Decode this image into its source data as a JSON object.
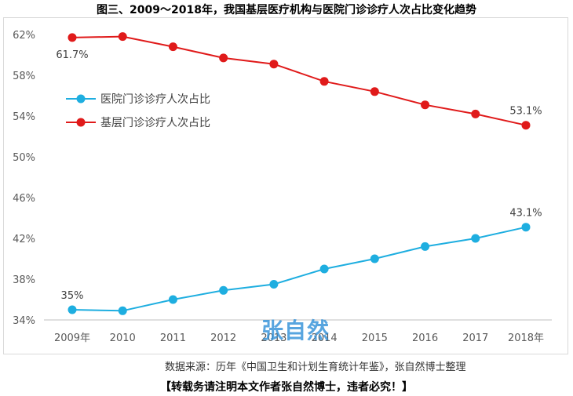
{
  "title": "图三、2009～2018年，我国基层医疗机构与医院门诊诊疗人次占比变化趋势",
  "source": "数据来源：历年《中国卫生和计划生育统计年鉴》，张自然博士整理",
  "notice": "【转载务请注明本文作者张自然博士，违者必究！】",
  "watermark": "张自然",
  "chart_data": {
    "type": "line",
    "x": [
      "2009年",
      "2010",
      "2011",
      "2012",
      "2013",
      "2014",
      "2015",
      "2016",
      "2017",
      "2018年"
    ],
    "y_ticks": [
      "62%",
      "58%",
      "54%",
      "50%",
      "46%",
      "42%",
      "38%",
      "34%"
    ],
    "ylim": [
      34,
      62
    ],
    "grid": false,
    "legend_position": "left-middle",
    "series": [
      {
        "name": "医院门诊诊疗人次占比",
        "color": "#1eaee0",
        "values": [
          35.0,
          34.9,
          36.0,
          36.9,
          37.5,
          39.0,
          40.0,
          41.2,
          42.0,
          43.1
        ],
        "labels": {
          "0": "35%",
          "9": "43.1%"
        }
      },
      {
        "name": "基层门诊诊疗人次占比",
        "color": "#e01a1a",
        "values": [
          61.7,
          61.8,
          60.8,
          59.7,
          59.1,
          57.4,
          56.4,
          55.1,
          54.2,
          53.1
        ],
        "labels": {
          "0": "61.7%",
          "9": "53.1%"
        }
      }
    ]
  }
}
